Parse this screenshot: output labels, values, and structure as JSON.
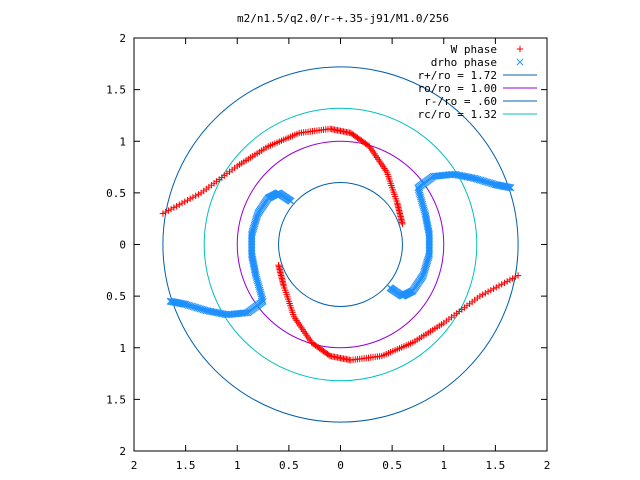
{
  "chart_data": {
    "type": "scatter",
    "title": "m2/n1.5/q2.0/r-+.35-j91/M1.0/256",
    "xlim": [
      -2,
      2
    ],
    "ylim": [
      -2,
      2
    ],
    "x_tick_values": [
      -2,
      -1.5,
      -1,
      -0.5,
      0,
      0.5,
      1,
      1.5,
      2
    ],
    "x_tick_labels": [
      "2",
      "1.5",
      "1",
      "0.5",
      "0",
      "0.5",
      "1",
      "1.5",
      "2"
    ],
    "y_tick_values": [
      2,
      1.5,
      1,
      0.5,
      0,
      -0.5,
      -1,
      -1.5,
      -2
    ],
    "y_tick_labels": [
      "2",
      "1.5",
      "1",
      "0.5",
      "0",
      "0.5",
      "1",
      "1.5",
      "2"
    ],
    "grid": false,
    "legend_position": "top-right",
    "circles": [
      {
        "label": "r+/ro = 1.72",
        "radius": 1.72,
        "color": "#0060ad"
      },
      {
        "label": "ro/ro = 1.00",
        "radius": 1.0,
        "color": "#9400d3"
      },
      {
        "label": "r-/ro = .60",
        "radius": 0.6,
        "color": "#0060ad"
      },
      {
        "label": "rc/ro = 1.32",
        "radius": 1.32,
        "color": "#00c0c0"
      }
    ],
    "series": [
      {
        "name": "W phase",
        "marker": "+",
        "color": "#ff0000",
        "arms": [
          [
            [
              0.6,
              0.2
            ],
            [
              0.55,
              0.4
            ],
            [
              0.45,
              0.7
            ],
            [
              0.28,
              0.95
            ],
            [
              0.1,
              1.08
            ],
            [
              -0.1,
              1.12
            ],
            [
              -0.4,
              1.08
            ],
            [
              -0.7,
              0.95
            ],
            [
              -1.0,
              0.76
            ],
            [
              -1.35,
              0.5
            ],
            [
              -1.72,
              0.3
            ]
          ],
          [
            [
              -0.6,
              -0.2
            ],
            [
              -0.55,
              -0.4
            ],
            [
              -0.45,
              -0.7
            ],
            [
              -0.28,
              -0.95
            ],
            [
              -0.1,
              -1.08
            ],
            [
              0.1,
              -1.12
            ],
            [
              0.4,
              -1.08
            ],
            [
              0.7,
              -0.95
            ],
            [
              1.0,
              -0.76
            ],
            [
              1.35,
              -0.5
            ],
            [
              1.72,
              -0.3
            ]
          ]
        ]
      },
      {
        "name": "drho phase",
        "marker": "x",
        "color": "#1e90ff",
        "arms": [
          [
            [
              0.48,
              -0.42
            ],
            [
              0.6,
              -0.5
            ],
            [
              0.7,
              -0.45
            ],
            [
              0.8,
              -0.3
            ],
            [
              0.86,
              -0.1
            ],
            [
              0.86,
              0.1
            ],
            [
              0.82,
              0.3
            ],
            [
              0.75,
              0.55
            ],
            [
              0.9,
              0.66
            ],
            [
              1.1,
              0.68
            ],
            [
              1.3,
              0.64
            ],
            [
              1.5,
              0.58
            ],
            [
              1.65,
              0.55
            ]
          ],
          [
            [
              -0.48,
              0.42
            ],
            [
              -0.6,
              0.5
            ],
            [
              -0.7,
              0.45
            ],
            [
              -0.8,
              0.3
            ],
            [
              -0.86,
              0.1
            ],
            [
              -0.86,
              -0.1
            ],
            [
              -0.82,
              -0.3
            ],
            [
              -0.75,
              -0.55
            ],
            [
              -0.9,
              -0.66
            ],
            [
              -1.1,
              -0.68
            ],
            [
              -1.3,
              -0.64
            ],
            [
              -1.5,
              -0.58
            ],
            [
              -1.65,
              -0.55
            ]
          ]
        ]
      }
    ]
  }
}
